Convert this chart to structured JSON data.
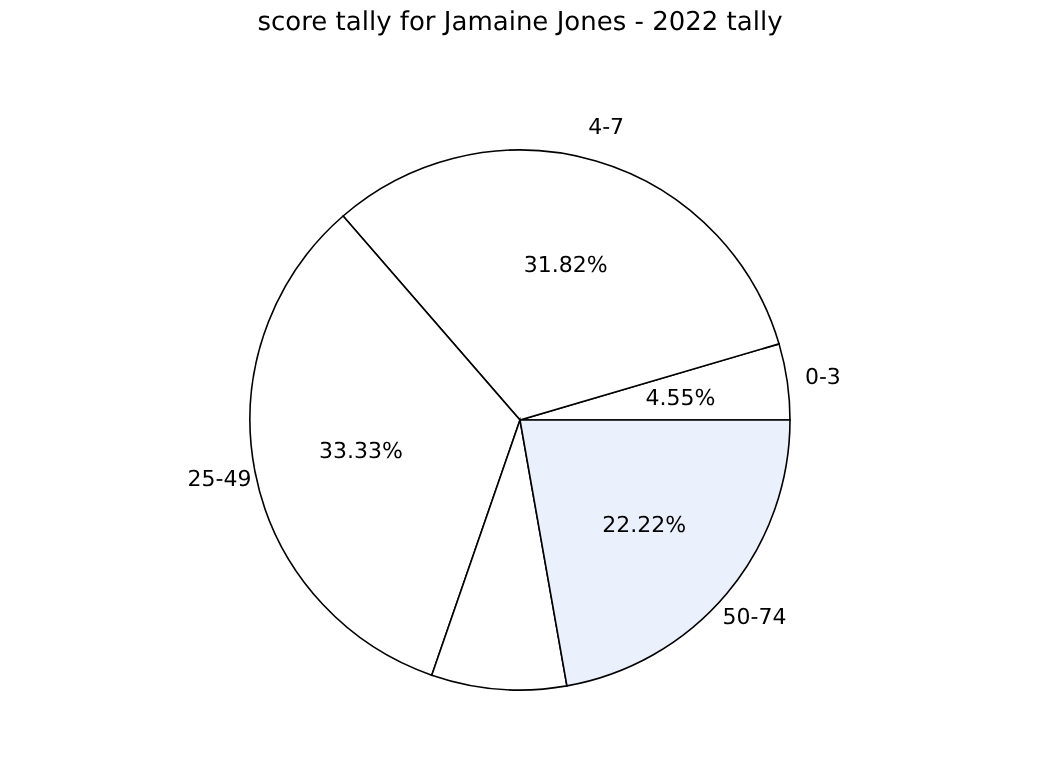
{
  "chart_data": {
    "type": "pie",
    "title": "score tally for Jamaine Jones - 2022 tally",
    "categories": [
      "0-3",
      "4-7",
      "25-49",
      null,
      "50-74"
    ],
    "values": [
      4.55,
      31.82,
      33.33,
      8.08,
      22.22
    ],
    "value_labels": [
      "4.55%",
      "31.82%",
      "33.33%",
      null,
      "22.22%"
    ],
    "colors": [
      "#ffffff",
      "#ffffff",
      "#ffffff",
      "#ffffff",
      "#eaf0fc"
    ]
  }
}
